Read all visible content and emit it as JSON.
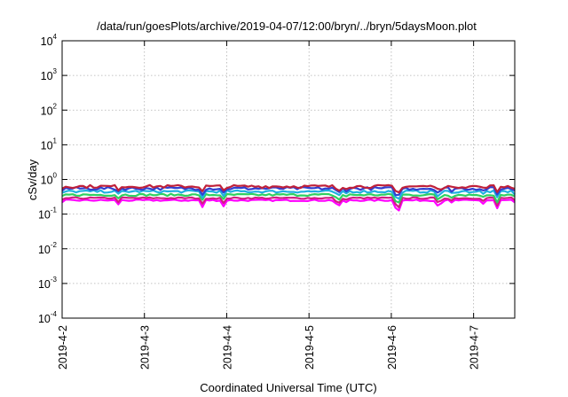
{
  "chart_data": {
    "type": "line",
    "title": "/data/run/goesPlots/archive/2019-04-07/12:00/bryn/../bryn/5daysMoon.plot",
    "xlabel": "Coordinated Universal Time (UTC)",
    "ylabel": "cSv/day",
    "x_range": [
      "2019-04-02",
      "2019-04-07T12:00"
    ],
    "x_ticks": [
      "2019-4-2",
      "2019-4-3",
      "2019-4-4",
      "2019-4-5",
      "2019-4-6",
      "2019-4-7"
    ],
    "y_scale": "log",
    "ylim": [
      0.0001,
      10000
    ],
    "y_ticks": [
      {
        "base": "10",
        "exp": "-4",
        "value": 0.0001
      },
      {
        "base": "10",
        "exp": "-3",
        "value": 0.001
      },
      {
        "base": "10",
        "exp": "-2",
        "value": 0.01
      },
      {
        "base": "10",
        "exp": "-1",
        "value": 0.1
      },
      {
        "base": "10",
        "exp": "0",
        "value": 1
      },
      {
        "base": "10",
        "exp": "1",
        "value": 10
      },
      {
        "base": "10",
        "exp": "2",
        "value": 100
      },
      {
        "base": "10",
        "exp": "3",
        "value": 1000
      },
      {
        "base": "10",
        "exp": "4",
        "value": 10000
      }
    ],
    "grid": true,
    "series": [
      {
        "color": "#c0203a",
        "level": 0.63,
        "spread": 0.1,
        "dip": 0.4
      },
      {
        "color": "#3040d0",
        "level": 0.55,
        "spread": 0.1,
        "dip": 0.45
      },
      {
        "color": "#20b0e0",
        "level": 0.45,
        "spread": 0.08,
        "dip": 0.5
      },
      {
        "color": "#30d060",
        "level": 0.36,
        "spread": 0.07,
        "dip": 0.5
      },
      {
        "color": "#d02080",
        "level": 0.29,
        "spread": 0.05,
        "dip": 0.55
      },
      {
        "color": "#ff00ff",
        "level": 0.25,
        "spread": 0.05,
        "dip": 0.6
      }
    ]
  }
}
